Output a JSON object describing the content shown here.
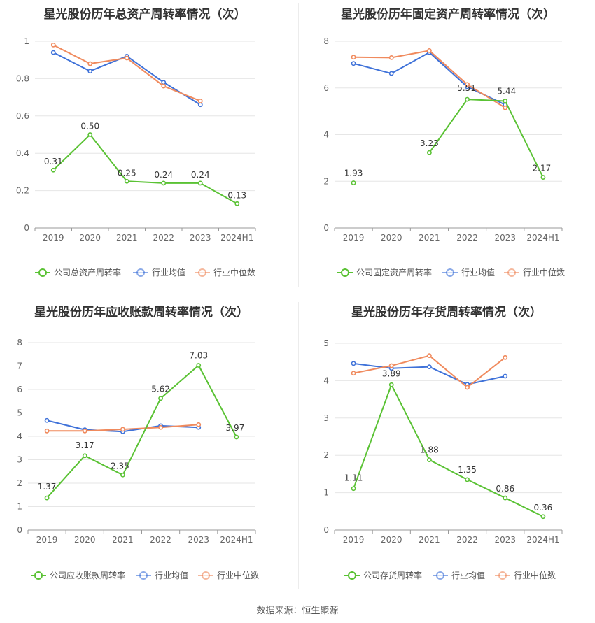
{
  "footer": {
    "source": "数据来源：恒生聚源"
  },
  "chart_data": [
    {
      "type": "line",
      "title": "星光股份历年总资产周转率情况（次）",
      "categories": [
        "2019",
        "2020",
        "2021",
        "2022",
        "2023",
        "2024H1"
      ],
      "ylim": [
        0,
        1
      ],
      "yticks": [
        0,
        0.2,
        0.4,
        0.6,
        0.8,
        1
      ],
      "ytick_labels": [
        "0",
        "0.2",
        "0.4",
        "0.6",
        "0.8",
        "1"
      ],
      "series": [
        {
          "name": "公司总资产周转率",
          "color": "#5ac234",
          "values": [
            0.31,
            0.5,
            0.25,
            0.24,
            0.24,
            0.13
          ],
          "labels": [
            "0.31",
            "0.50",
            "0.25",
            "0.24",
            "0.24",
            "0.13"
          ]
        },
        {
          "name": "行业均值",
          "color": "#3f72d9",
          "values": [
            0.94,
            0.84,
            0.92,
            0.78,
            0.66,
            null
          ]
        },
        {
          "name": "行业中位数",
          "color": "#f08a5d",
          "values": [
            0.98,
            0.88,
            0.91,
            0.76,
            0.68,
            null
          ]
        }
      ]
    },
    {
      "type": "line",
      "title": "星光股份历年固定资产周转率情况（次）",
      "categories": [
        "2019",
        "2020",
        "2021",
        "2022",
        "2023",
        "2024H1"
      ],
      "ylim": [
        0,
        8
      ],
      "yticks": [
        0,
        2,
        4,
        6,
        8
      ],
      "ytick_labels": [
        "0",
        "2",
        "4",
        "6",
        "8"
      ],
      "series": [
        {
          "name": "公司固定资产周转率",
          "color": "#5ac234",
          "values": [
            1.93,
            null,
            3.23,
            5.51,
            5.44,
            2.17
          ],
          "labels": [
            "1.93",
            "",
            "3.23",
            "5.51",
            "5.44",
            "2.17"
          ]
        },
        {
          "name": "行业均值",
          "color": "#3f72d9",
          "values": [
            7.05,
            6.62,
            7.52,
            6.05,
            5.28,
            null
          ]
        },
        {
          "name": "行业中位数",
          "color": "#f08a5d",
          "values": [
            7.32,
            7.3,
            7.6,
            6.15,
            5.15,
            null
          ]
        }
      ]
    },
    {
      "type": "line",
      "title": "星光股份历年应收账款周转率情况（次）",
      "categories": [
        "2019",
        "2020",
        "2021",
        "2022",
        "2023",
        "2024H1"
      ],
      "ylim": [
        0,
        8
      ],
      "yticks": [
        0,
        1,
        2,
        3,
        4,
        5,
        6,
        7,
        8
      ],
      "ytick_labels": [
        "0",
        "1",
        "2",
        "3",
        "4",
        "5",
        "6",
        "7",
        "8"
      ],
      "series": [
        {
          "name": "公司应收账款周转率",
          "color": "#5ac234",
          "values": [
            1.37,
            3.17,
            2.35,
            5.62,
            7.03,
            3.97
          ],
          "labels": [
            "1.37",
            "3.17",
            "2.35",
            "5.62",
            "7.03",
            "3.97"
          ]
        },
        {
          "name": "行业均值",
          "color": "#3f72d9",
          "values": [
            4.68,
            4.28,
            4.2,
            4.45,
            4.38,
            null
          ]
        },
        {
          "name": "行业中位数",
          "color": "#f08a5d",
          "values": [
            4.23,
            4.23,
            4.3,
            4.38,
            4.5,
            null
          ]
        }
      ]
    },
    {
      "type": "line",
      "title": "星光股份历年存货周转率情况（次）",
      "categories": [
        "2019",
        "2020",
        "2021",
        "2022",
        "2023",
        "2024H1"
      ],
      "ylim": [
        0,
        5
      ],
      "yticks": [
        0,
        1,
        2,
        3,
        4,
        5
      ],
      "ytick_labels": [
        "0",
        "1",
        "2",
        "3",
        "4",
        "5"
      ],
      "series": [
        {
          "name": "公司存货周转率",
          "color": "#5ac234",
          "values": [
            1.11,
            3.89,
            1.88,
            1.35,
            0.86,
            0.36
          ],
          "labels": [
            "1.11",
            "3.89",
            "1.88",
            "1.35",
            "0.86",
            "0.36"
          ]
        },
        {
          "name": "行业均值",
          "color": "#3f72d9",
          "values": [
            4.46,
            4.33,
            4.37,
            3.9,
            4.12,
            null
          ]
        },
        {
          "name": "行业中位数",
          "color": "#f08a5d",
          "values": [
            4.2,
            4.4,
            4.67,
            3.82,
            4.62,
            null
          ]
        }
      ]
    }
  ]
}
